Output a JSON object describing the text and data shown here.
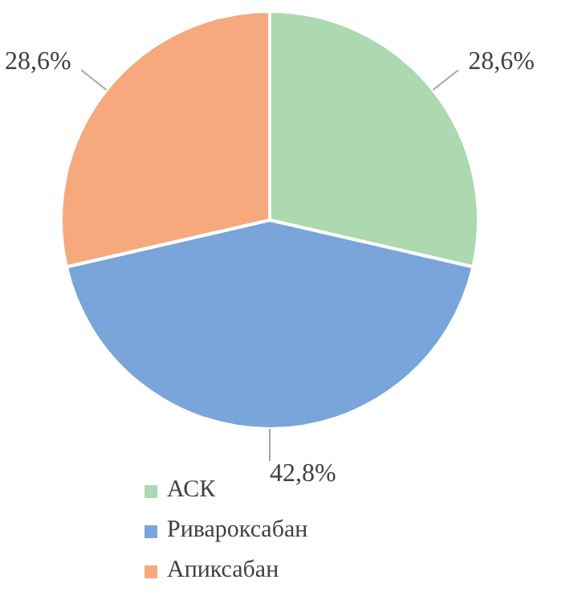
{
  "chart_data": {
    "type": "pie",
    "categories": [
      "АСК",
      "Ривароксабан",
      "Апиксабан"
    ],
    "values": [
      28.6,
      42.8,
      28.6
    ],
    "value_labels": [
      "28,6%",
      "42,8%",
      "28,6%"
    ],
    "colors": [
      "#acd9af",
      "#79a5da",
      "#f6a97c"
    ],
    "legend": "bottom"
  }
}
